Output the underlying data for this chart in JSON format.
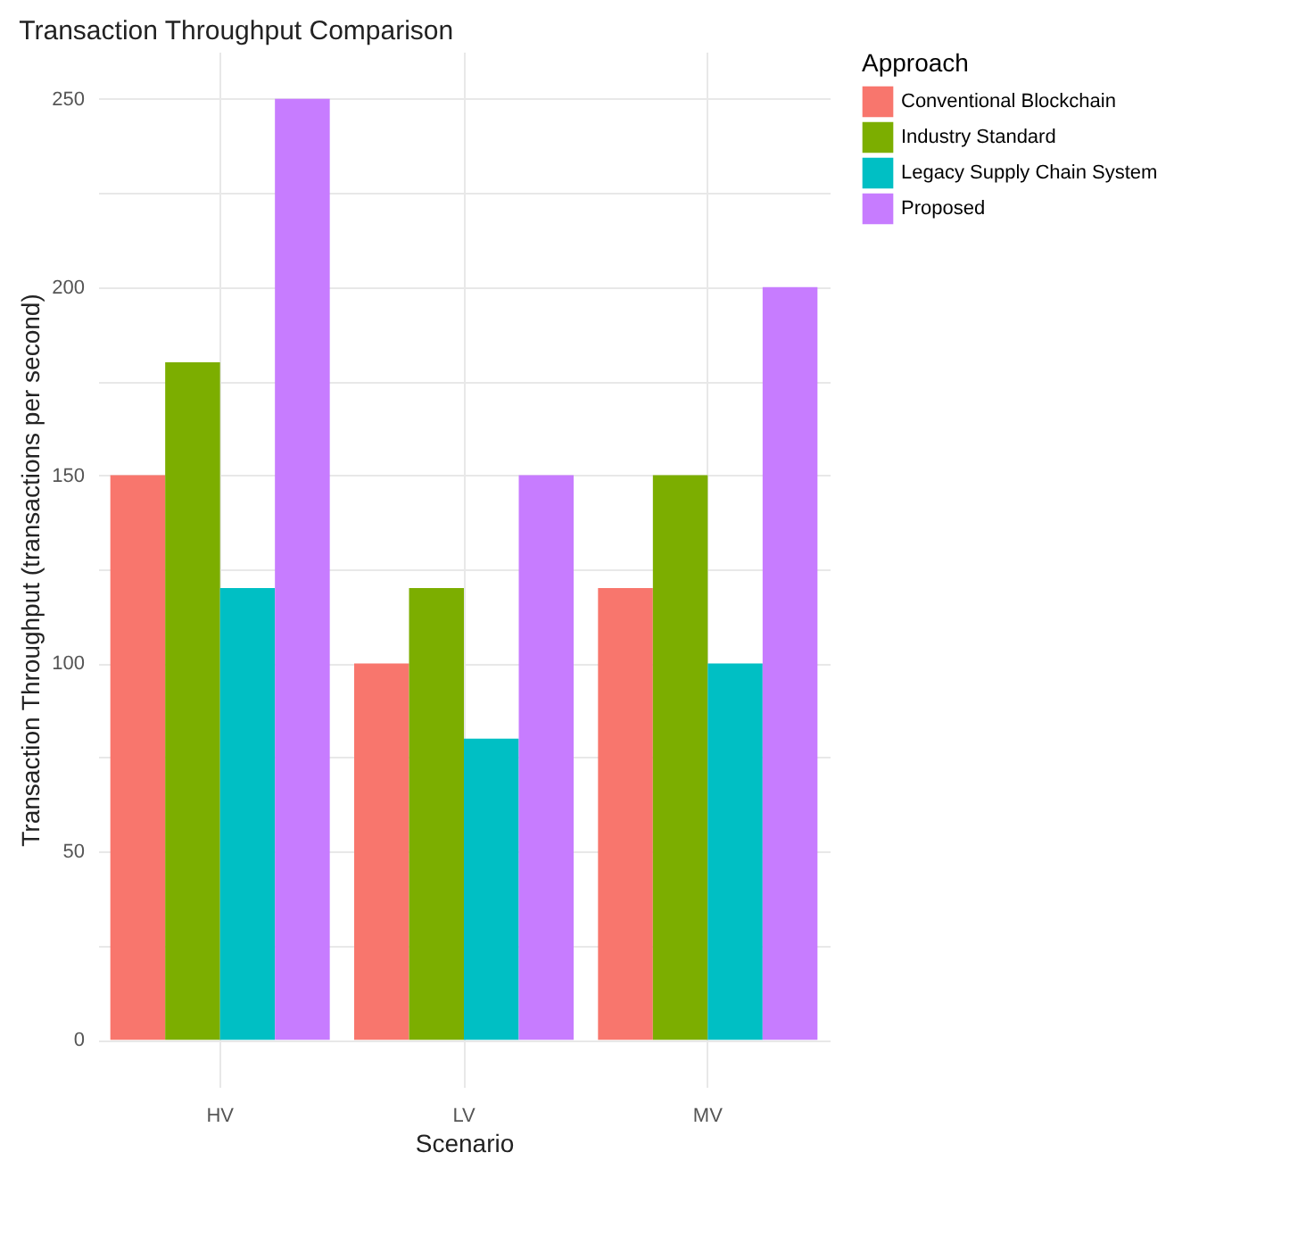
{
  "chart_data": {
    "type": "bar",
    "title": "Transaction Throughput Comparison",
    "xlabel": "Scenario",
    "ylabel": "Transaction Throughput (transactions per second)",
    "legend_title": "Approach",
    "categories": [
      "HV",
      "LV",
      "MV"
    ],
    "series": [
      {
        "name": "Conventional Blockchain",
        "color": "#f8766d",
        "values": [
          150,
          100,
          120
        ]
      },
      {
        "name": "Industry Standard",
        "color": "#7cae00",
        "values": [
          180,
          120,
          150
        ]
      },
      {
        "name": "Legacy Supply Chain System",
        "color": "#00bfc4",
        "values": [
          120,
          80,
          100
        ]
      },
      {
        "name": "Proposed",
        "color": "#c77cff",
        "values": [
          250,
          150,
          200
        ]
      }
    ],
    "ylim": [
      -12.5,
      262.5
    ],
    "yticks": [
      0,
      {
        "value": 25,
        "label": null
      },
      50,
      {
        "value": 75,
        "label": null
      },
      100,
      {
        "value": 125,
        "label": null
      },
      150,
      {
        "value": 175,
        "label": null
      },
      200,
      {
        "value": 225,
        "label": null
      },
      250
    ],
    "grid": true,
    "legend": "right"
  }
}
